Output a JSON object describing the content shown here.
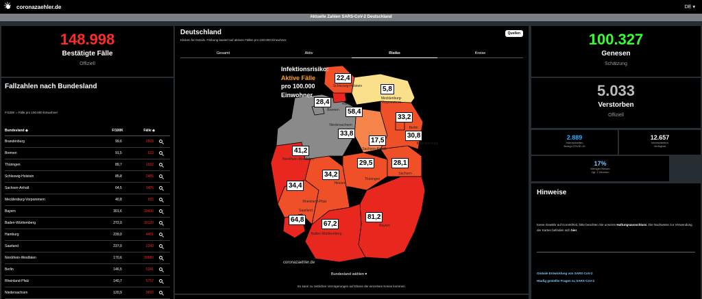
{
  "header": {
    "brand": "coronazaehler.de",
    "lang": "DE"
  },
  "banner": "Aktuelle Zahlen SARS-CoV-2 Deutschland",
  "cases": {
    "value": "148.998",
    "label": "Bestätigte Fälle",
    "source": "Offiziell"
  },
  "recovered": {
    "value": "100.327",
    "label": "Genesen",
    "source": "Schätzung"
  },
  "deaths": {
    "value": "5.033",
    "label": "Verstorben",
    "source": "Offiziell"
  },
  "icu": {
    "value": "2.889",
    "line1": "Intensivbetten",
    "line2": "Belegt COVID-19"
  },
  "icu_free": {
    "value": "12.657",
    "line1": "Intensivbetten",
    "line2": "Verfügbar"
  },
  "travel": {
    "value": "17%",
    "line1": "Weniger Reisen",
    "line2": "Vgl. 2 Wochen"
  },
  "states_panel": {
    "title": "Fallzahlen nach Bundesland",
    "note": "F/100K = Fälle pro 100.000 Einwohner",
    "col_state": "Bundesland",
    "col_f100k": "F/100K",
    "col_cases": "Fälle",
    "rows": [
      {
        "name": "Brandenburg",
        "f": "99,6",
        "c": "2503"
      },
      {
        "name": "Bremen",
        "f": "91,5",
        "c": "623"
      },
      {
        "name": "Thüringen",
        "f": "89,7",
        "c": "1932"
      },
      {
        "name": "Schleswig-Holstein",
        "f": "85,8",
        "c": "2485"
      },
      {
        "name": "Sachsen-Anhalt",
        "f": "64,5",
        "c": "1425"
      },
      {
        "name": "Mecklenburg-Vorpommern",
        "f": "40,8",
        "c": "655"
      },
      {
        "name": "Bayern",
        "f": "301,6",
        "c": "39436"
      },
      {
        "name": "Baden-Württemberg",
        "f": "272,0",
        "c": "30120"
      },
      {
        "name": "Hamburg",
        "f": "239,0",
        "c": "4451"
      },
      {
        "name": "Saarland",
        "f": "237,0",
        "c": "2348"
      },
      {
        "name": "Nordrhein-Westfalen",
        "f": "170,6",
        "c": "30680"
      },
      {
        "name": "Berlin",
        "f": "146,5",
        "c": "5341"
      },
      {
        "name": "Rheinland-Pfalz",
        "f": "140,7",
        "c": "5757"
      },
      {
        "name": "Niedersachsen",
        "f": "120,9",
        "c": "9650"
      }
    ]
  },
  "map_panel": {
    "title": "Deutschland",
    "desc": "Klicken für Details. Färbung basiert auf aktiven Fällen pro 100.000 Einwohner.",
    "sources_label": "Quellen",
    "tabs": [
      "Gesamt",
      "Aktiv",
      "Risiko",
      "Kreise"
    ],
    "active_tab": "Risiko",
    "legend": {
      "line1": "Infektionsrisiko:",
      "line2": "Aktive Fälle",
      "line3": "pro 100.000",
      "line4": "Einwohner"
    },
    "watermark": "coronazaehler.de",
    "select_label": "Bundesland wählen",
    "footnote": "Es kann zu zeitlichen Verzögerungen auf Ebene der einzelnen Kreise kommen.",
    "values": {
      "sh": "22,4",
      "mv": "5,8",
      "hb": "28,4",
      "hh": "58,4",
      "ns": "33,8",
      "st": "17,5",
      "be": "33,2",
      "bb": "30,8",
      "nw": "41,2",
      "th": "29,5",
      "sn": "28,1",
      "he": "34,2",
      "rp": "34,4",
      "sl": "64,8",
      "bw": "67,2",
      "by": "81,2"
    },
    "names": {
      "sh": "Schleswig-Holstein",
      "mv": "Mecklenburg-Vorpommern",
      "hb": "Bremen",
      "hh": "Hamburg",
      "ns": "Niedersachsen",
      "st": "Sachsen-Anhalt",
      "be": "Berlin",
      "bb": "Branden-burg",
      "nw": "Nordrhein-Westfalen",
      "th": "Thüringen",
      "sn": "Sachsen",
      "he": "Hessen",
      "rp": "Rheinland-Pfalz",
      "sl": "Saarland",
      "bw": "Baden-Württemberg",
      "by": "Bayern"
    }
  },
  "hints": {
    "title": "Hinweise",
    "text_pre": "Keine Gewähr auf Korrektheit, bitte beachten Sie unseren",
    "text_link": "Haftungsausschluss",
    "text_post": ". Die Nachweise zur Verwendung der Karten befinden sich",
    "text_link2": "hier",
    "link1": "Globale Entwicklung von SARS-CoV-2",
    "link2": "Häufig gestellte Fragen zu SARS-CoV-2"
  },
  "colors": {
    "red": "#ff2a2a",
    "green": "#33ff33",
    "map_dark": "#e8281e",
    "map_mid": "#f5502a",
    "map_light": "#fbe08c",
    "map_grey": "#8a8a8a"
  }
}
